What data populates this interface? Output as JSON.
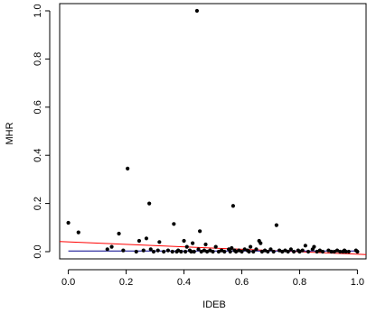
{
  "chart_data": {
    "type": "scatter",
    "title": "",
    "xlabel": "IDEB",
    "ylabel": "MHR",
    "xlim": [
      -0.03,
      1.03
    ],
    "ylim": [
      -0.03,
      1.03
    ],
    "x_ticks": [
      "0.0",
      "0.2",
      "0.4",
      "0.6",
      "0.8",
      "1.0"
    ],
    "y_ticks": [
      "0.0",
      "0.2",
      "0.4",
      "0.6",
      "0.8",
      "1.0"
    ],
    "grid": false,
    "legend": "none",
    "point_color": "#000000",
    "points": [
      [
        0.0,
        0.12
      ],
      [
        0.035,
        0.08
      ],
      [
        0.135,
        0.01
      ],
      [
        0.15,
        0.02
      ],
      [
        0.175,
        0.075
      ],
      [
        0.19,
        0.005
      ],
      [
        0.205,
        0.345
      ],
      [
        0.235,
        0.0
      ],
      [
        0.245,
        0.045
      ],
      [
        0.26,
        0.005
      ],
      [
        0.27,
        0.055
      ],
      [
        0.28,
        0.2
      ],
      [
        0.285,
        0.01
      ],
      [
        0.295,
        0.0
      ],
      [
        0.31,
        0.005
      ],
      [
        0.315,
        0.04
      ],
      [
        0.33,
        0.0
      ],
      [
        0.345,
        0.005
      ],
      [
        0.36,
        0.0
      ],
      [
        0.365,
        0.115
      ],
      [
        0.375,
        0.0
      ],
      [
        0.38,
        0.005
      ],
      [
        0.39,
        0.0
      ],
      [
        0.4,
        0.045
      ],
      [
        0.405,
        0.0
      ],
      [
        0.41,
        0.02
      ],
      [
        0.42,
        0.005
      ],
      [
        0.425,
        0.0
      ],
      [
        0.43,
        0.035
      ],
      [
        0.435,
        0.0
      ],
      [
        0.445,
        1.0
      ],
      [
        0.45,
        0.01
      ],
      [
        0.455,
        0.085
      ],
      [
        0.46,
        0.0
      ],
      [
        0.47,
        0.005
      ],
      [
        0.475,
        0.03
      ],
      [
        0.48,
        0.0
      ],
      [
        0.49,
        0.005
      ],
      [
        0.5,
        0.0
      ],
      [
        0.51,
        0.02
      ],
      [
        0.52,
        0.0
      ],
      [
        0.53,
        0.005
      ],
      [
        0.54,
        0.0
      ],
      [
        0.555,
        0.01
      ],
      [
        0.56,
        0.0
      ],
      [
        0.565,
        0.015
      ],
      [
        0.57,
        0.19
      ],
      [
        0.575,
        0.005
      ],
      [
        0.58,
        0.0
      ],
      [
        0.59,
        0.005
      ],
      [
        0.6,
        0.0
      ],
      [
        0.61,
        0.01
      ],
      [
        0.62,
        0.005
      ],
      [
        0.625,
        0.0
      ],
      [
        0.63,
        0.02
      ],
      [
        0.64,
        0.0
      ],
      [
        0.65,
        0.01
      ],
      [
        0.66,
        0.045
      ],
      [
        0.665,
        0.035
      ],
      [
        0.67,
        0.0
      ],
      [
        0.68,
        0.005
      ],
      [
        0.69,
        0.0
      ],
      [
        0.7,
        0.01
      ],
      [
        0.71,
        0.0
      ],
      [
        0.72,
        0.11
      ],
      [
        0.73,
        0.005
      ],
      [
        0.74,
        0.0
      ],
      [
        0.75,
        0.005
      ],
      [
        0.76,
        0.0
      ],
      [
        0.77,
        0.01
      ],
      [
        0.78,
        0.0
      ],
      [
        0.795,
        0.005
      ],
      [
        0.8,
        0.0
      ],
      [
        0.81,
        0.005
      ],
      [
        0.82,
        0.025
      ],
      [
        0.83,
        0.0
      ],
      [
        0.845,
        0.01
      ],
      [
        0.85,
        0.02
      ],
      [
        0.86,
        0.0
      ],
      [
        0.87,
        0.005
      ],
      [
        0.88,
        0.0
      ],
      [
        0.9,
        0.005
      ],
      [
        0.91,
        0.0
      ],
      [
        0.92,
        0.0
      ],
      [
        0.93,
        0.005
      ],
      [
        0.94,
        0.0
      ],
      [
        0.95,
        0.0
      ],
      [
        0.955,
        0.005
      ],
      [
        0.96,
        0.0
      ],
      [
        0.97,
        0.0
      ],
      [
        0.995,
        0.005
      ],
      [
        1.0,
        0.0
      ]
    ],
    "fit_lines": [
      {
        "color": "#ff0000",
        "x": [
          -0.03,
          1.03
        ],
        "y": [
          0.042,
          -0.012
        ]
      },
      {
        "color": "#00008b",
        "x": [
          0.0,
          1.0
        ],
        "y": [
          0.003,
          0.003
        ]
      }
    ]
  }
}
